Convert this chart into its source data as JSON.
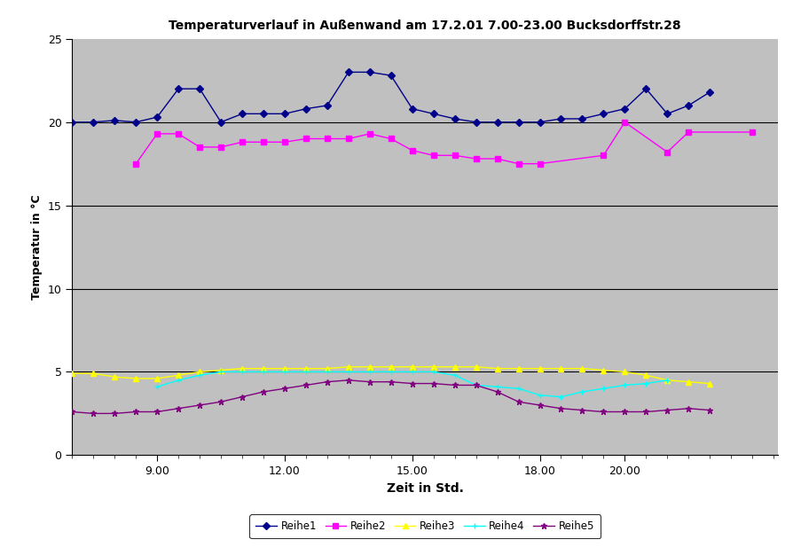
{
  "title": "Temperaturverlauf in Außenwand am 17.2.01 7.00-23.00 Bucksdorffstr.28",
  "xlabel": "Zeit in Std.",
  "ylabel": "Temperatur in °C",
  "background_color": "#c0c0c0",
  "xlim": [
    7.0,
    23.6
  ],
  "ylim": [
    0,
    25
  ],
  "y_ticks": [
    0,
    5,
    10,
    15,
    20,
    25
  ],
  "x_major_ticks": [
    9.0,
    12.0,
    15.0,
    18.0,
    20.0
  ],
  "x_major_labels": [
    "9.00",
    "12.00",
    "15.00",
    "18.00",
    "20.00"
  ],
  "hlines": [
    5.0,
    10.0,
    15.0,
    20.0
  ],
  "series": {
    "Reihe1": {
      "color": "#00008B",
      "marker": "D",
      "markersize": 4,
      "linewidth": 1.0,
      "x": [
        7.0,
        7.5,
        8.0,
        8.5,
        9.0,
        9.5,
        10.0,
        10.5,
        11.0,
        11.5,
        12.0,
        12.5,
        13.0,
        13.5,
        14.0,
        14.5,
        15.0,
        15.5,
        16.0,
        16.5,
        17.0,
        17.5,
        18.0,
        18.5,
        19.0,
        19.5,
        20.0,
        20.5,
        21.0,
        21.5,
        22.0
      ],
      "y": [
        20.0,
        20.0,
        20.1,
        20.0,
        20.3,
        22.0,
        22.0,
        20.0,
        20.5,
        20.5,
        20.5,
        20.8,
        21.0,
        23.0,
        23.0,
        22.8,
        20.8,
        20.5,
        20.2,
        20.0,
        20.0,
        20.0,
        20.0,
        20.2,
        20.2,
        20.5,
        20.8,
        22.0,
        20.5,
        21.0,
        21.8
      ]
    },
    "Reihe2": {
      "color": "#FF00FF",
      "marker": "s",
      "markersize": 4,
      "linewidth": 1.0,
      "x": [
        8.5,
        9.0,
        9.5,
        10.0,
        10.5,
        11.0,
        11.5,
        12.0,
        12.5,
        13.0,
        13.5,
        14.0,
        14.5,
        15.0,
        15.5,
        16.0,
        16.5,
        17.0,
        17.5,
        18.0,
        19.5,
        20.0,
        21.0,
        21.5,
        23.0
      ],
      "y": [
        17.5,
        19.3,
        19.3,
        18.5,
        18.5,
        18.8,
        18.8,
        18.8,
        19.0,
        19.0,
        19.0,
        19.3,
        19.0,
        18.3,
        18.0,
        18.0,
        17.8,
        17.8,
        17.5,
        17.5,
        18.0,
        20.0,
        18.2,
        19.4,
        19.4
      ]
    },
    "Reihe3": {
      "color": "#FFFF00",
      "marker": "^",
      "markersize": 5,
      "linewidth": 1.0,
      "x": [
        7.0,
        7.5,
        8.0,
        8.5,
        9.0,
        9.5,
        10.0,
        10.5,
        11.0,
        11.5,
        12.0,
        12.5,
        13.0,
        13.5,
        14.0,
        14.5,
        15.0,
        15.5,
        16.0,
        16.5,
        17.0,
        17.5,
        18.0,
        18.5,
        19.0,
        19.5,
        20.0,
        20.5,
        21.0,
        21.5,
        22.0
      ],
      "y": [
        4.9,
        4.9,
        4.7,
        4.6,
        4.6,
        4.8,
        5.0,
        5.1,
        5.2,
        5.2,
        5.2,
        5.2,
        5.2,
        5.3,
        5.3,
        5.3,
        5.3,
        5.3,
        5.3,
        5.3,
        5.2,
        5.2,
        5.2,
        5.2,
        5.2,
        5.1,
        5.0,
        4.8,
        4.5,
        4.4,
        4.3
      ]
    },
    "Reihe4": {
      "color": "#00FFFF",
      "marker": "+",
      "markersize": 5,
      "linewidth": 1.0,
      "x": [
        9.0,
        9.5,
        10.0,
        10.5,
        11.0,
        11.5,
        12.0,
        12.5,
        13.0,
        13.5,
        14.0,
        14.5,
        15.0,
        15.5,
        16.0,
        16.5,
        17.0,
        17.5,
        18.0,
        18.5,
        19.0,
        19.5,
        20.0,
        20.5,
        21.0
      ],
      "y": [
        4.1,
        4.5,
        4.8,
        5.0,
        5.0,
        5.0,
        5.0,
        5.0,
        5.0,
        5.0,
        5.0,
        5.0,
        5.0,
        5.0,
        4.8,
        4.2,
        4.1,
        4.0,
        3.6,
        3.5,
        3.8,
        4.0,
        4.2,
        4.3,
        4.5
      ]
    },
    "Reihe5": {
      "color": "#800080",
      "marker": "*",
      "markersize": 5,
      "linewidth": 1.0,
      "x": [
        7.0,
        7.5,
        8.0,
        8.5,
        9.0,
        9.5,
        10.0,
        10.5,
        11.0,
        11.5,
        12.0,
        12.5,
        13.0,
        13.5,
        14.0,
        14.5,
        15.0,
        15.5,
        16.0,
        16.5,
        17.0,
        17.5,
        18.0,
        18.5,
        19.0,
        19.5,
        20.0,
        20.5,
        21.0,
        21.5,
        22.0
      ],
      "y": [
        2.6,
        2.5,
        2.5,
        2.6,
        2.6,
        2.8,
        3.0,
        3.2,
        3.5,
        3.8,
        4.0,
        4.2,
        4.4,
        4.5,
        4.4,
        4.4,
        4.3,
        4.3,
        4.2,
        4.2,
        3.8,
        3.2,
        3.0,
        2.8,
        2.7,
        2.6,
        2.6,
        2.6,
        2.7,
        2.8,
        2.7
      ]
    }
  },
  "legend_order": [
    "Reihe1",
    "Reihe2",
    "Reihe3",
    "Reihe4",
    "Reihe5"
  ]
}
